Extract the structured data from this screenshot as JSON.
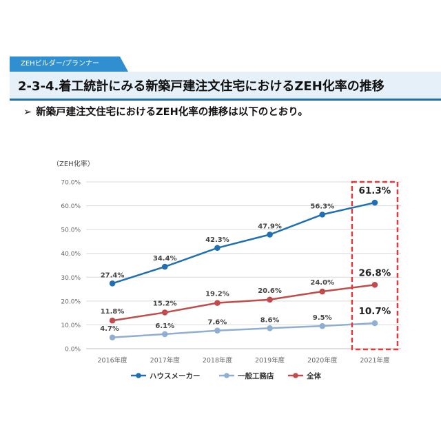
{
  "header": {
    "tag_label": "ZEHビルダー/プランナー",
    "title": "2-3-4.着工統計にみる新築戸建注文住宅におけるZEH化率の推移",
    "subtitle": "新築戸建注文住宅におけるZEH化率の推移は以下のとおり。",
    "bullet_glyph": "➢"
  },
  "chart_data": {
    "type": "line",
    "ylabel": "（ZEH化率）",
    "categories": [
      "2016年度",
      "2017年度",
      "2018年度",
      "2019年度",
      "2020年度",
      "2021年度"
    ],
    "ylim": [
      0,
      70
    ],
    "y_ticks": [
      0,
      10,
      20,
      30,
      40,
      50,
      60,
      70
    ],
    "y_tick_labels": [
      "0.0%",
      "10.0%",
      "20.0%",
      "30.0%",
      "40.0%",
      "50.0%",
      "60.0%",
      "70.0%"
    ],
    "grid": true,
    "legend_position": "bottom",
    "series": [
      {
        "name": "ハウスメーカー",
        "color": "#1f6fb2",
        "values": [
          27.4,
          34.4,
          42.3,
          47.9,
          56.3,
          61.3
        ],
        "labels": [
          "27.4%",
          "34.4%",
          "42.3%",
          "47.9%",
          "56.3%",
          "61.3%"
        ]
      },
      {
        "name": "一般工務店",
        "color": "#8eaed2",
        "values": [
          4.7,
          6.1,
          7.6,
          8.6,
          9.5,
          10.7
        ],
        "labels": [
          "4.7%",
          "6.1%",
          "7.6%",
          "8.6%",
          "9.5%",
          "10.7%"
        ]
      },
      {
        "name": "全体",
        "color": "#bf4b4b",
        "values": [
          11.8,
          15.2,
          19.2,
          20.6,
          24.0,
          26.8
        ],
        "labels": [
          "11.8%",
          "15.2%",
          "19.2%",
          "20.6%",
          "24.0%",
          "26.8%"
        ]
      }
    ],
    "highlight": {
      "category_index": 5,
      "style": "red-dashed-box"
    }
  }
}
